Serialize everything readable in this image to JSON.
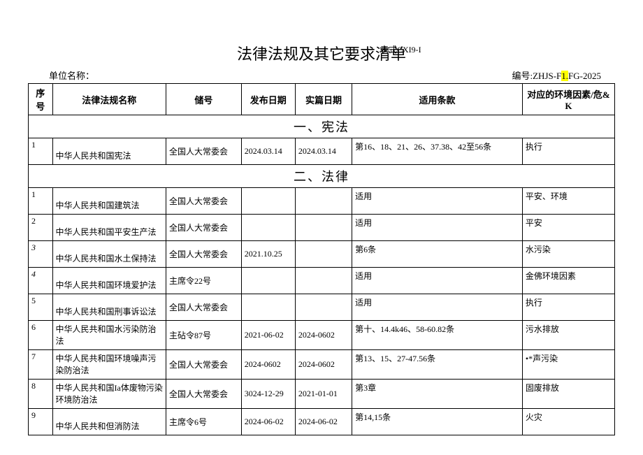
{
  "header": {
    "title": "法律法规及其它要求清单",
    "form_code": "表式CXI9-I",
    "unit_label": "单位名称：",
    "doc_code_prefix": "编号:ZHJS-F",
    "doc_code_highlight": "1.",
    "doc_code_suffix": "FG-2025"
  },
  "columns": {
    "idx": "序号",
    "name": "法律法规名称",
    "dept": "储号",
    "pub": "发布日期",
    "eff": "实篇日期",
    "clause": "适用条款",
    "env": "对应的环境因素/危&K"
  },
  "sections": [
    {
      "title": "一、宪法",
      "rows": [
        {
          "idx": "1",
          "name": "中华人民共和国宪法",
          "dept": "全国人大常委会",
          "pub": "2024.03.14",
          "eff": "2024.03.14",
          "clause": "第16、18、21、26、37.38、42至56条",
          "env": "执行",
          "h": "tall"
        }
      ]
    },
    {
      "title": "二、法律",
      "rows": [
        {
          "idx": "1",
          "name": "中华人民共和国建筑法",
          "dept": "全国人大常委会",
          "pub": "",
          "eff": "",
          "clause": "适用",
          "env": "平安、环境",
          "h": "tall"
        },
        {
          "idx": "2",
          "name": "中华人民共和国平安生产法",
          "dept": "全国人大常委会",
          "pub": "",
          "eff": "",
          "clause": "适用",
          "env": "平安",
          "h": "tall"
        },
        {
          "idx": "3",
          "name": "中华人民共和国水土保持法",
          "dept": "全国人大常委会",
          "pub": "2021.10.25",
          "eff": "",
          "clause": "第6条",
          "env": "水污染",
          "h": "tall",
          "italic_idx": true
        },
        {
          "idx": "4",
          "name": "中华人民共和国环境爱护法",
          "dept": "主席令22号",
          "pub": "",
          "eff": "",
          "clause": "适用",
          "env": "金佛环境因素",
          "h": "tall",
          "italic_idx": true
        },
        {
          "idx": "5",
          "name": "中华人民共和国刑事诉讼法",
          "dept": "全国人大常委会",
          "pub": "",
          "eff": "",
          "clause": "适用",
          "env": "执行",
          "h": "tall"
        },
        {
          "idx": "6",
          "name": "中华人民共和国水污染防治法",
          "dept": "主砧令87号",
          "pub": "2021-06-02",
          "eff": "2024-0602",
          "clause": "第十、14.4k46、58-60.82条",
          "env": "污水排放",
          "h": "short"
        },
        {
          "idx": "7",
          "name": "中华人民共和国环境噪声污染防治法",
          "dept": "全国人大常委会",
          "pub": "2024-0602",
          "eff": "2024-0602",
          "clause": "第13、15、27-47.56条",
          "env": "•*声污染",
          "h": "short"
        },
        {
          "idx": "8",
          "name": "中华人民共和国Ia体废物污染环境防治法",
          "dept": "全国人大常委会",
          "pub": "3024-12-29",
          "eff": "2021-01-01",
          "clause": "第3章",
          "env": "固废排放",
          "h": "short"
        },
        {
          "idx": "9",
          "name": "中华人民共和但消防法",
          "dept": "主席令6号",
          "pub": "2024-06-02",
          "eff": "2024-06-02",
          "clause": "第14,15条",
          "env": "火灾",
          "h": "tall"
        }
      ]
    }
  ]
}
